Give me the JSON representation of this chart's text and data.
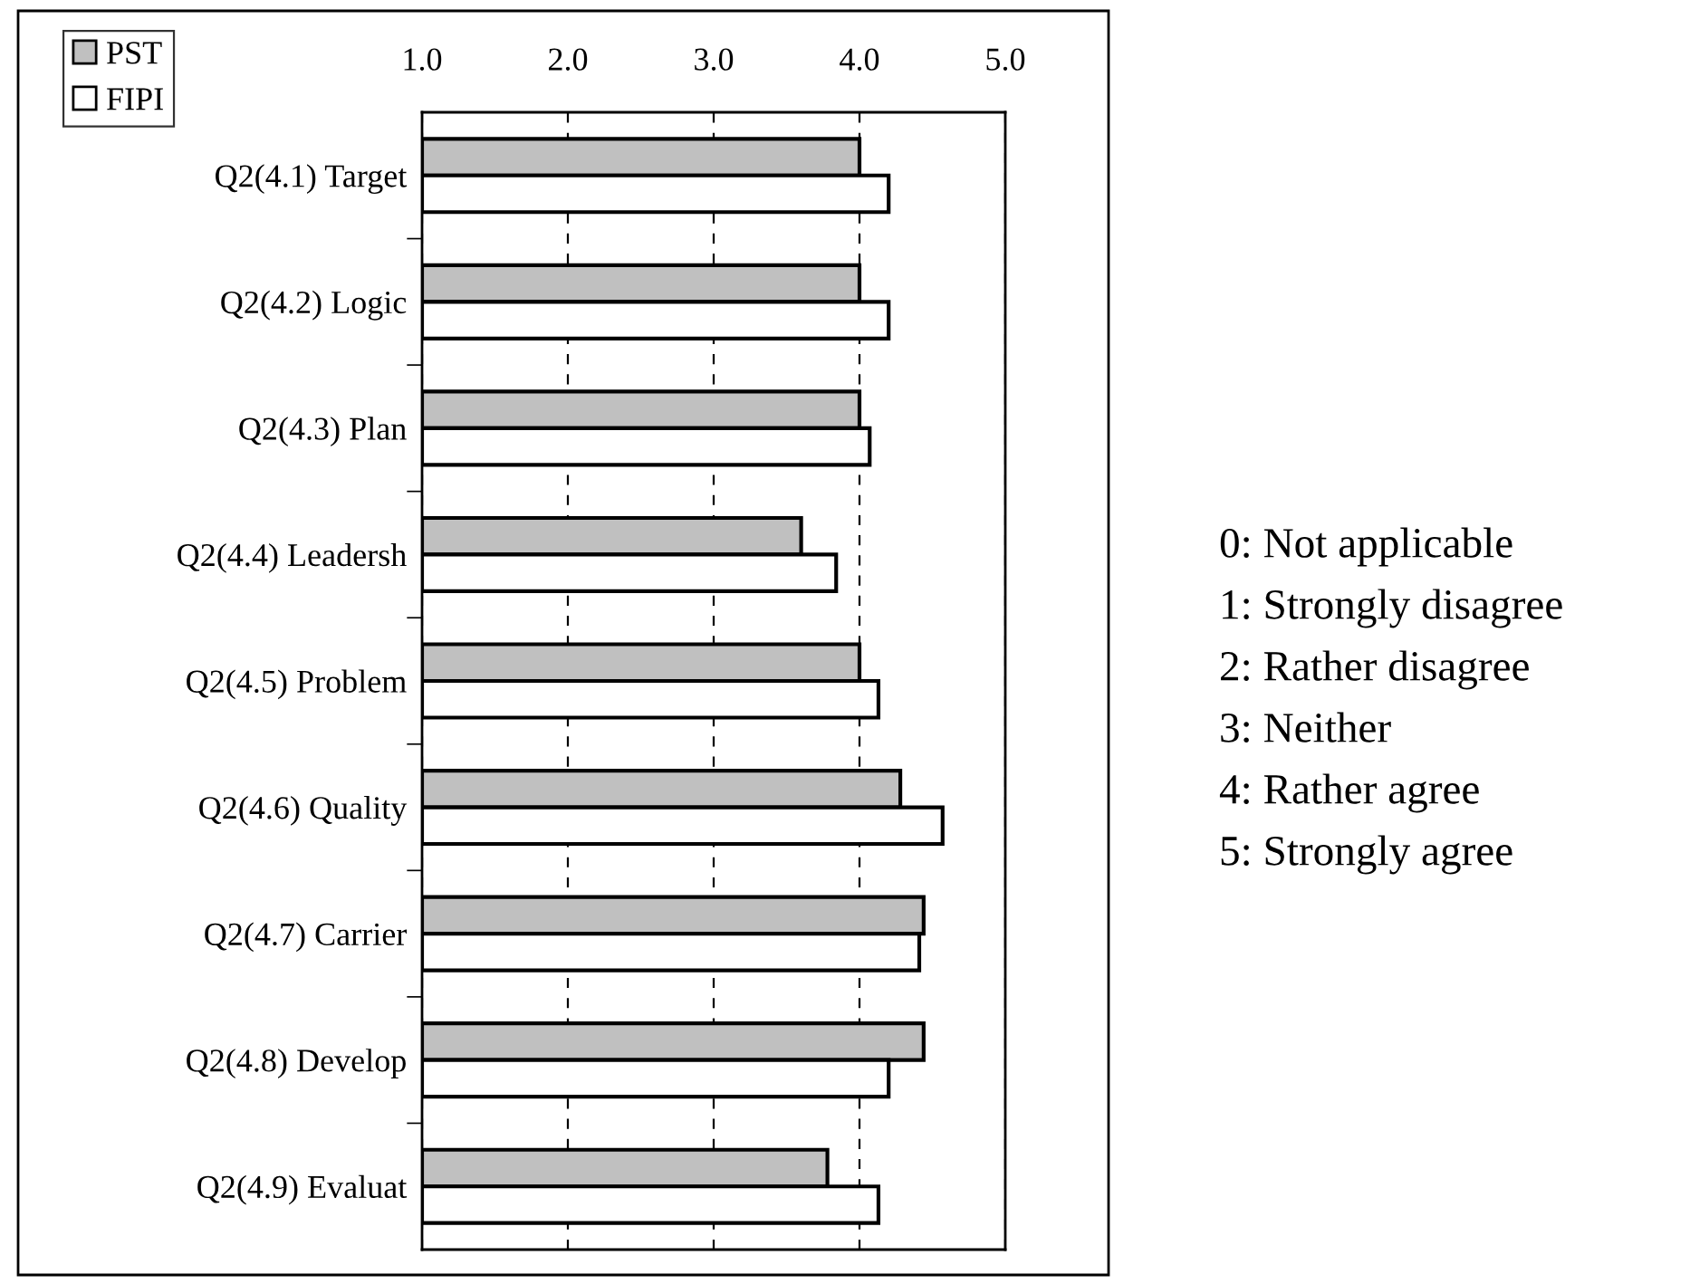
{
  "chart_data": {
    "type": "bar",
    "orientation": "horizontal",
    "categories": [
      "Q2(4.1) Target",
      "Q2(4.2) Logic",
      "Q2(4.3) Plan",
      "Q2(4.4) Leadersh",
      "Q2(4.5) Problem",
      "Q2(4.6) Quality",
      "Q2(4.7) Carrier",
      "Q2(4.8) Develop",
      "Q2(4.9) Evaluat"
    ],
    "series": [
      {
        "name": "PST",
        "color": "#c0c0c0",
        "values": [
          4.0,
          4.0,
          4.0,
          3.6,
          4.0,
          4.28,
          4.44,
          4.44,
          3.78
        ]
      },
      {
        "name": "FIPI",
        "color": "#ffffff",
        "values": [
          4.2,
          4.2,
          4.07,
          3.84,
          4.13,
          4.57,
          4.41,
          4.2,
          4.13
        ]
      }
    ],
    "xlim": [
      1.0,
      5.0
    ],
    "xticks": [
      {
        "value": 1,
        "label": "1.0"
      },
      {
        "value": 2,
        "label": "2.0"
      },
      {
        "value": 3,
        "label": "3.0"
      },
      {
        "value": 4,
        "label": "4.0"
      },
      {
        "value": 5,
        "label": "5.0"
      }
    ],
    "grid": "x",
    "line_style": "dashed",
    "legend": "top left",
    "annotations": [
      "0: Not applicable",
      "1: Strongly disagree",
      "2: Rather disagree",
      "3: Neither",
      "4: Rather agree",
      "5: Strongly agree"
    ]
  }
}
